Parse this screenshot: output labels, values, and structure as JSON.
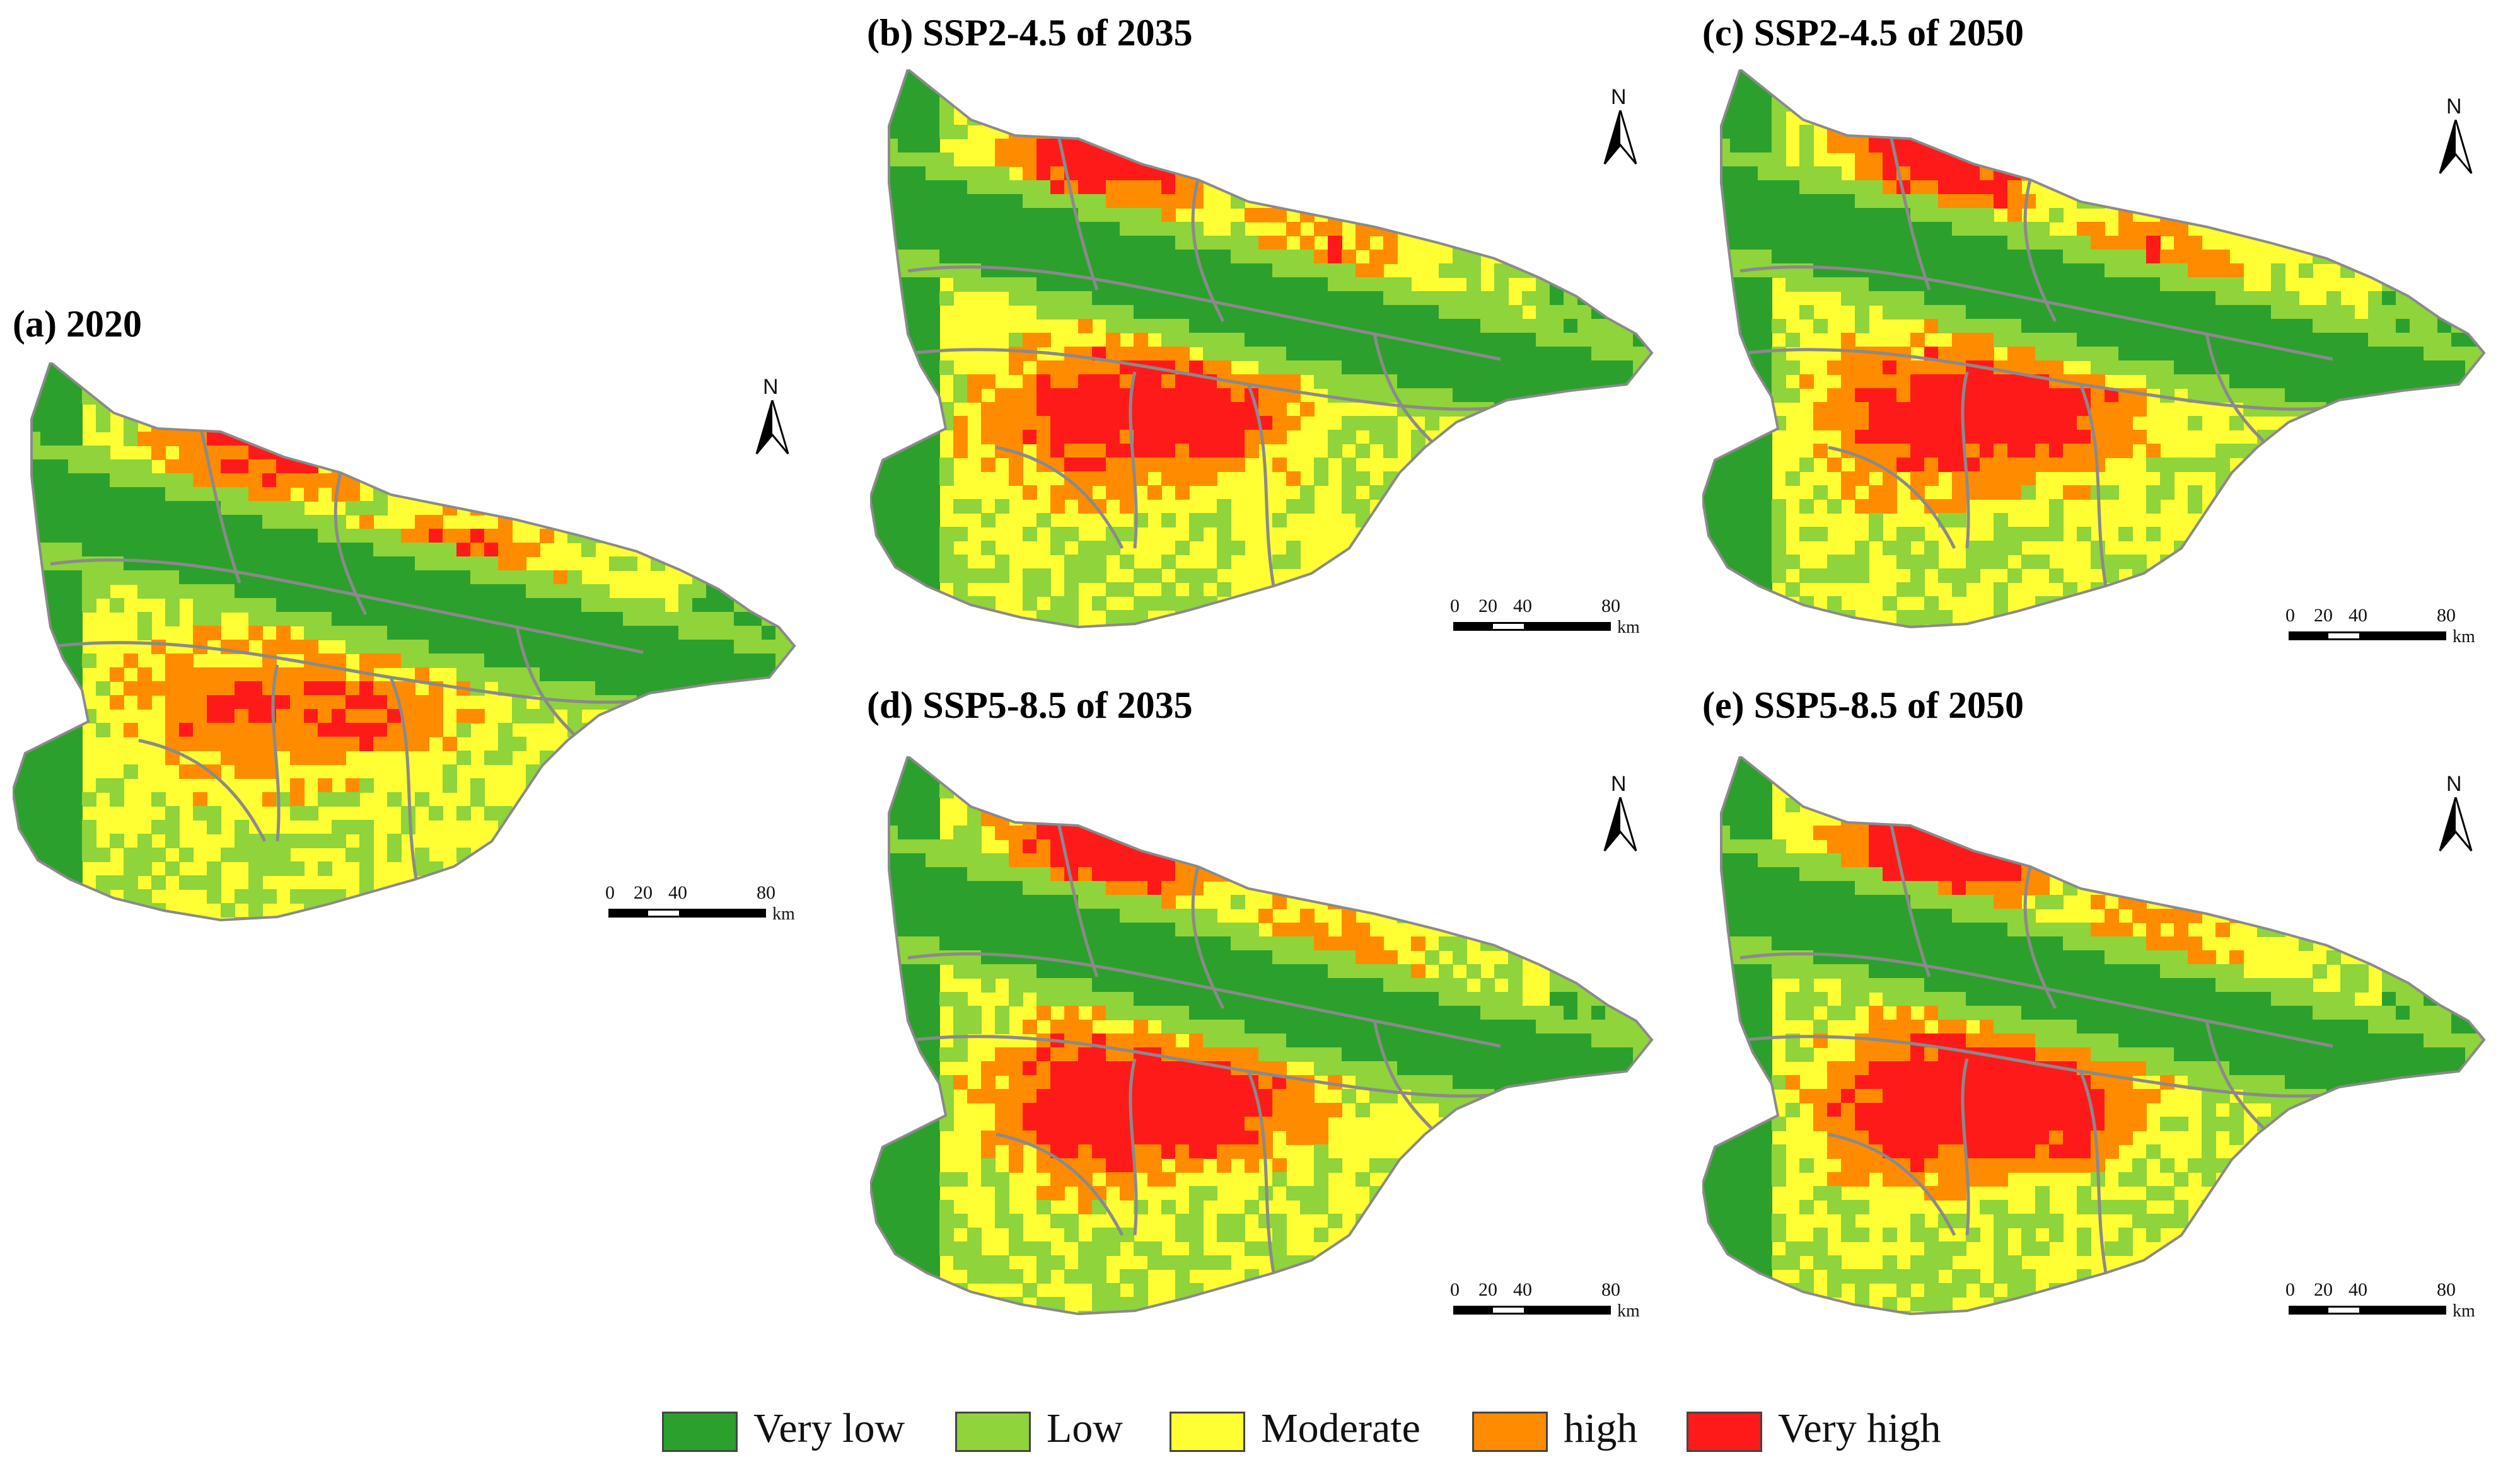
{
  "panels": [
    {
      "id": "a",
      "title": "(a) 2020"
    },
    {
      "id": "b",
      "title": "(b) SSP2-4.5 of 2035"
    },
    {
      "id": "c",
      "title": "(c) SSP2-4.5 of 2050"
    },
    {
      "id": "d",
      "title": "(d) SSP5-8.5 of 2035"
    },
    {
      "id": "e",
      "title": "(e) SSP5-8.5 of 2050"
    }
  ],
  "north_label": "N",
  "scale": {
    "ticks": [
      "0",
      "20",
      "40",
      "80"
    ],
    "unit": "km"
  },
  "legend": [
    {
      "label": "Very low",
      "color": "#2ca02c"
    },
    {
      "label": "Low",
      "color": "#8fd43a"
    },
    {
      "label": "Moderate",
      "color": "#ffff33"
    },
    {
      "label": "high",
      "color": "#ff8c00"
    },
    {
      "label": "Very high",
      "color": "#ff1a1a"
    }
  ]
}
